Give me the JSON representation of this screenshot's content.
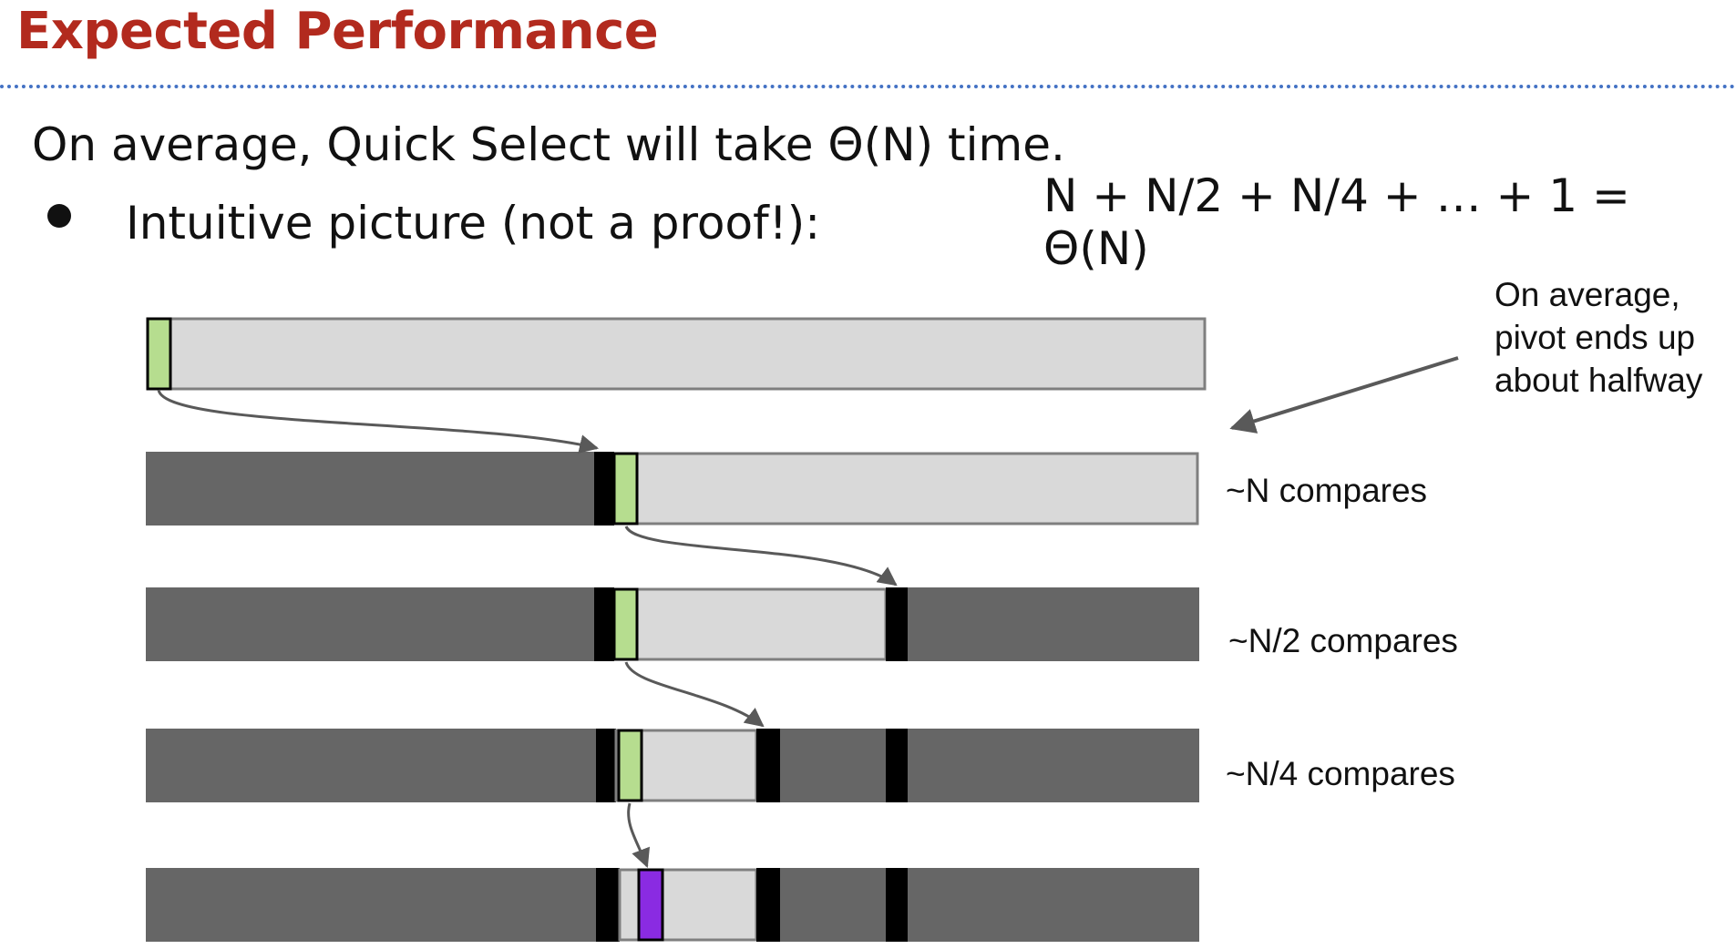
{
  "slide": {
    "title": "Expected Performance",
    "title_color": "#b22a1e",
    "line1": "On average, Quick Select will take Θ(N) time.",
    "bullet_text": "Intuitive picture (not a proof!):",
    "formula": "N + N/2 + N/4 + … + 1 = Θ(N)"
  },
  "diagram": {
    "annotation_lines": [
      "On average,",
      "pivot ends up",
      "about halfway"
    ],
    "compare_labels": [
      "~N compares",
      "~N/2 compares",
      "~N/4 compares"
    ],
    "colors": {
      "done_region": "#666666",
      "active_region": "#d9d9d9",
      "pivot_marker": "#000000",
      "current_pivot": "#b6dd8f",
      "found_item": "#8a2be2",
      "arrow": "#595959"
    }
  }
}
